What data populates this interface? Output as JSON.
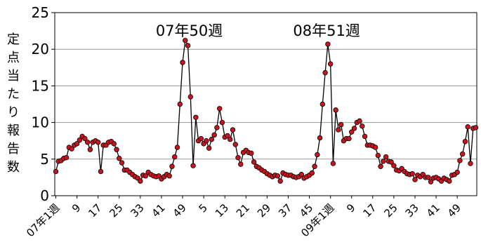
{
  "chart_data": {
    "type": "line",
    "ylabel": "定点当たり報告数",
    "ylim": [
      0,
      25
    ],
    "yticks": [
      0,
      5,
      10,
      15,
      20,
      25
    ],
    "xticks": [
      {
        "index": 0,
        "label": "07年1週"
      },
      {
        "index": 8,
        "label": "9"
      },
      {
        "index": 16,
        "label": "17"
      },
      {
        "index": 24,
        "label": "25"
      },
      {
        "index": 32,
        "label": "33"
      },
      {
        "index": 40,
        "label": "41"
      },
      {
        "index": 48,
        "label": "49"
      },
      {
        "index": 56,
        "label": "5"
      },
      {
        "index": 64,
        "label": "13"
      },
      {
        "index": 72,
        "label": "21"
      },
      {
        "index": 80,
        "label": "29"
      },
      {
        "index": 88,
        "label": "37"
      },
      {
        "index": 96,
        "label": "45"
      },
      {
        "index": 104,
        "label": "09年1週"
      },
      {
        "index": 112,
        "label": "9"
      },
      {
        "index": 120,
        "label": "17"
      },
      {
        "index": 128,
        "label": "25"
      },
      {
        "index": 136,
        "label": "33"
      },
      {
        "index": 144,
        "label": "41"
      },
      {
        "index": 152,
        "label": "49"
      }
    ],
    "annotations": [
      {
        "index": 50,
        "value": 21.2,
        "text": "07年50週"
      },
      {
        "index": 102,
        "value": 20.7,
        "text": "08年51週"
      }
    ],
    "series": [
      {
        "values": [
          3.3,
          4.7,
          4.8,
          5.1,
          5.2,
          6.6,
          6.4,
          6.9,
          7.1,
          7.6,
          8.1,
          7.8,
          7.3,
          6.3,
          7.3,
          7.5,
          7.3,
          3.3,
          6.9,
          6.9,
          7.3,
          7.4,
          7.1,
          6.3,
          5.1,
          4.5,
          3.5,
          3.5,
          3.2,
          2.9,
          2.6,
          2.4,
          2.0,
          2.8,
          2.7,
          3.2,
          2.9,
          2.7,
          2.6,
          2.7,
          2.3,
          2.6,
          2.9,
          2.7,
          4.0,
          5.3,
          6.6,
          12.5,
          18.2,
          21.2,
          20.5,
          13.5,
          4.1,
          10.7,
          7.5,
          7.8,
          7.1,
          7.5,
          6.5,
          7.7,
          8.3,
          9.3,
          11.9,
          10.0,
          8.0,
          8.2,
          7.7,
          9.0,
          7.0,
          5.2,
          4.3,
          5.9,
          6.2,
          5.9,
          5.8,
          4.6,
          4.0,
          3.8,
          3.5,
          3.3,
          3.0,
          2.8,
          2.6,
          2.8,
          2.7,
          2.0,
          3.1,
          2.9,
          2.8,
          2.8,
          2.6,
          2.5,
          2.6,
          2.9,
          2.4,
          2.6,
          2.8,
          3.1,
          4.0,
          5.6,
          7.9,
          12.5,
          16.8,
          20.7,
          18.0,
          4.4,
          11.7,
          9.0,
          9.7,
          7.5,
          7.8,
          7.8,
          8.7,
          9.2,
          10.0,
          10.2,
          9.5,
          8.1,
          6.9,
          6.9,
          6.8,
          6.6,
          5.5,
          4.0,
          4.7,
          5.3,
          4.7,
          4.6,
          4.1,
          3.5,
          3.4,
          3.7,
          3.3,
          3.0,
          2.9,
          3.0,
          2.2,
          2.8,
          2.6,
          2.9,
          2.5,
          2.5,
          1.9,
          2.4,
          2.5,
          2.3,
          2.0,
          2.4,
          2.2,
          2.0,
          2.8,
          2.9,
          3.2,
          4.8,
          5.7,
          7.4,
          9.4,
          4.4,
          9.2,
          9.3
        ]
      }
    ]
  }
}
